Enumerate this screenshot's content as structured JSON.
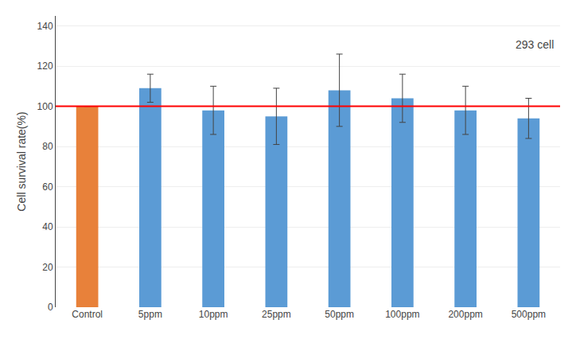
{
  "chart_data": {
    "type": "bar",
    "categories": [
      "Control",
      "5ppm",
      "10ppm",
      "25ppm",
      "50ppm",
      "100ppm",
      "200ppm",
      "500ppm"
    ],
    "values": [
      100.0,
      109.0,
      98.0,
      95.0,
      108.0,
      104.0,
      98.0,
      94.0
    ],
    "errors": [
      0.0,
      7.0,
      12.0,
      14.0,
      18.0,
      12.0,
      12.0,
      10.0
    ],
    "colors": [
      "#E8813A",
      "#5B9BD5",
      "#5B9BD5",
      "#5B9BD5",
      "#5B9BD5",
      "#5B9BD5",
      "#5B9BD5",
      "#5B9BD5"
    ],
    "ylabel": "Cell survival rate(%)",
    "ylim": [
      0,
      145
    ],
    "yticks": [
      0,
      20,
      40,
      60,
      80,
      100,
      120,
      140
    ],
    "lines": [
      {
        "y": 100,
        "color": "#FF0000"
      }
    ],
    "annotation": "293 cell",
    "grid": true
  }
}
